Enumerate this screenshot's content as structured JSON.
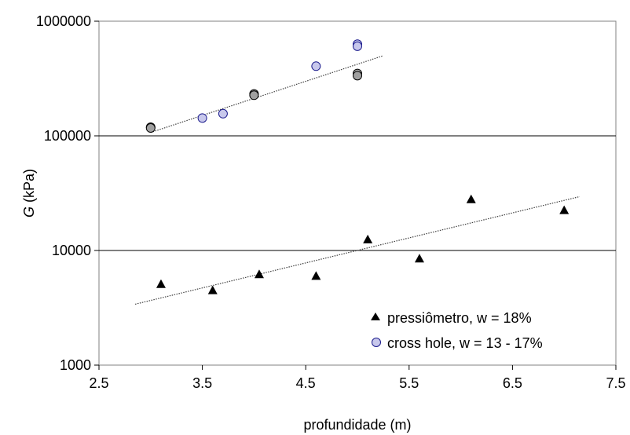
{
  "chart_data": {
    "type": "scatter",
    "xlabel": "profundidade (m)",
    "ylabel_italic": "G",
    "ylabel_rest": " (kPa)",
    "xlim": [
      2.5,
      7.5
    ],
    "ylim": [
      1000,
      1000000
    ],
    "yscale": "log",
    "xticks": [
      "2.5",
      "3.5",
      "4.5",
      "5.5",
      "6.5",
      "7.5"
    ],
    "yticks": [
      "1000",
      "10000",
      "100000",
      "1000000"
    ],
    "legend": [
      {
        "name": "pressiômetro, w = 18%"
      },
      {
        "name": "cross hole, w = 13 - 17%"
      }
    ],
    "legend_placement": "bottom-right",
    "series": [
      {
        "name": "pressiômetro, w = 18%",
        "marker": "triangle",
        "color": "#000000",
        "points": [
          [
            3.1,
            5100
          ],
          [
            3.6,
            4500
          ],
          [
            4.05,
            6200
          ],
          [
            4.6,
            6000
          ],
          [
            5.1,
            12500
          ],
          [
            5.6,
            8500
          ],
          [
            6.1,
            28000
          ],
          [
            7.0,
            22500
          ]
        ],
        "trendline": [
          [
            2.85,
            3400
          ],
          [
            7.15,
            29500
          ]
        ]
      },
      {
        "name": "cross hole, w = 13 - 17%",
        "marker": "circle",
        "color": "#c8c8ec",
        "edge": "#1a1a8c",
        "points": [
          [
            3.5,
            143000
          ],
          [
            3.7,
            156000
          ],
          [
            4.6,
            405000
          ],
          [
            5.0,
            630000
          ],
          [
            5.0,
            605000
          ]
        ]
      },
      {
        "marker": "circle",
        "color": "#a0a0a0",
        "edge": "#000000",
        "points": [
          [
            3.0,
            119000
          ],
          [
            3.0,
            117000
          ],
          [
            4.0,
            232000
          ],
          [
            4.0,
            226000
          ],
          [
            5.0,
            350000
          ],
          [
            5.0,
            335000
          ]
        ],
        "trendline": [
          [
            3.0,
            107000
          ],
          [
            5.25,
            500000
          ]
        ]
      }
    ]
  }
}
